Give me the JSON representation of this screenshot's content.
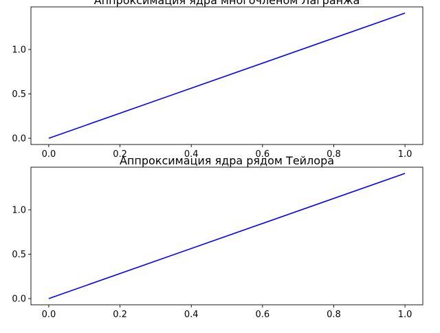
{
  "chart_data": [
    {
      "type": "line",
      "title": "Аппроксимация ядра многочленом Лагранжа",
      "xlabel": "",
      "ylabel": "",
      "xlim": [
        -0.05,
        1.05
      ],
      "ylim": [
        -0.07,
        1.48
      ],
      "x_ticks": [
        0.0,
        0.2,
        0.4,
        0.6,
        0.8,
        1.0
      ],
      "x_tick_labels": [
        "0.0",
        "0.2",
        "0.4",
        "0.6",
        "0.8",
        "1.0"
      ],
      "y_ticks": [
        0.0,
        0.5,
        1.0
      ],
      "y_tick_labels": [
        "0.0",
        "0.5",
        "1.0"
      ],
      "grid": false,
      "series": [
        {
          "color": "#0000ff",
          "x": [
            0.0,
            1.0
          ],
          "y": [
            0.0,
            1.41
          ]
        }
      ]
    },
    {
      "type": "line",
      "title": "Аппроксимация ядра рядом Тейлора",
      "xlabel": "",
      "ylabel": "",
      "xlim": [
        -0.05,
        1.05
      ],
      "ylim": [
        -0.07,
        1.48
      ],
      "x_ticks": [
        0.0,
        0.2,
        0.4,
        0.6,
        0.8,
        1.0
      ],
      "x_tick_labels": [
        "0.0",
        "0.2",
        "0.4",
        "0.6",
        "0.8",
        "1.0"
      ],
      "y_ticks": [
        0.0,
        0.5,
        1.0
      ],
      "y_tick_labels": [
        "0.0",
        "0.5",
        "1.0"
      ],
      "grid": false,
      "series": [
        {
          "color": "#0000ff",
          "x": [
            0.0,
            1.0
          ],
          "y": [
            0.0,
            1.41
          ]
        }
      ]
    }
  ]
}
